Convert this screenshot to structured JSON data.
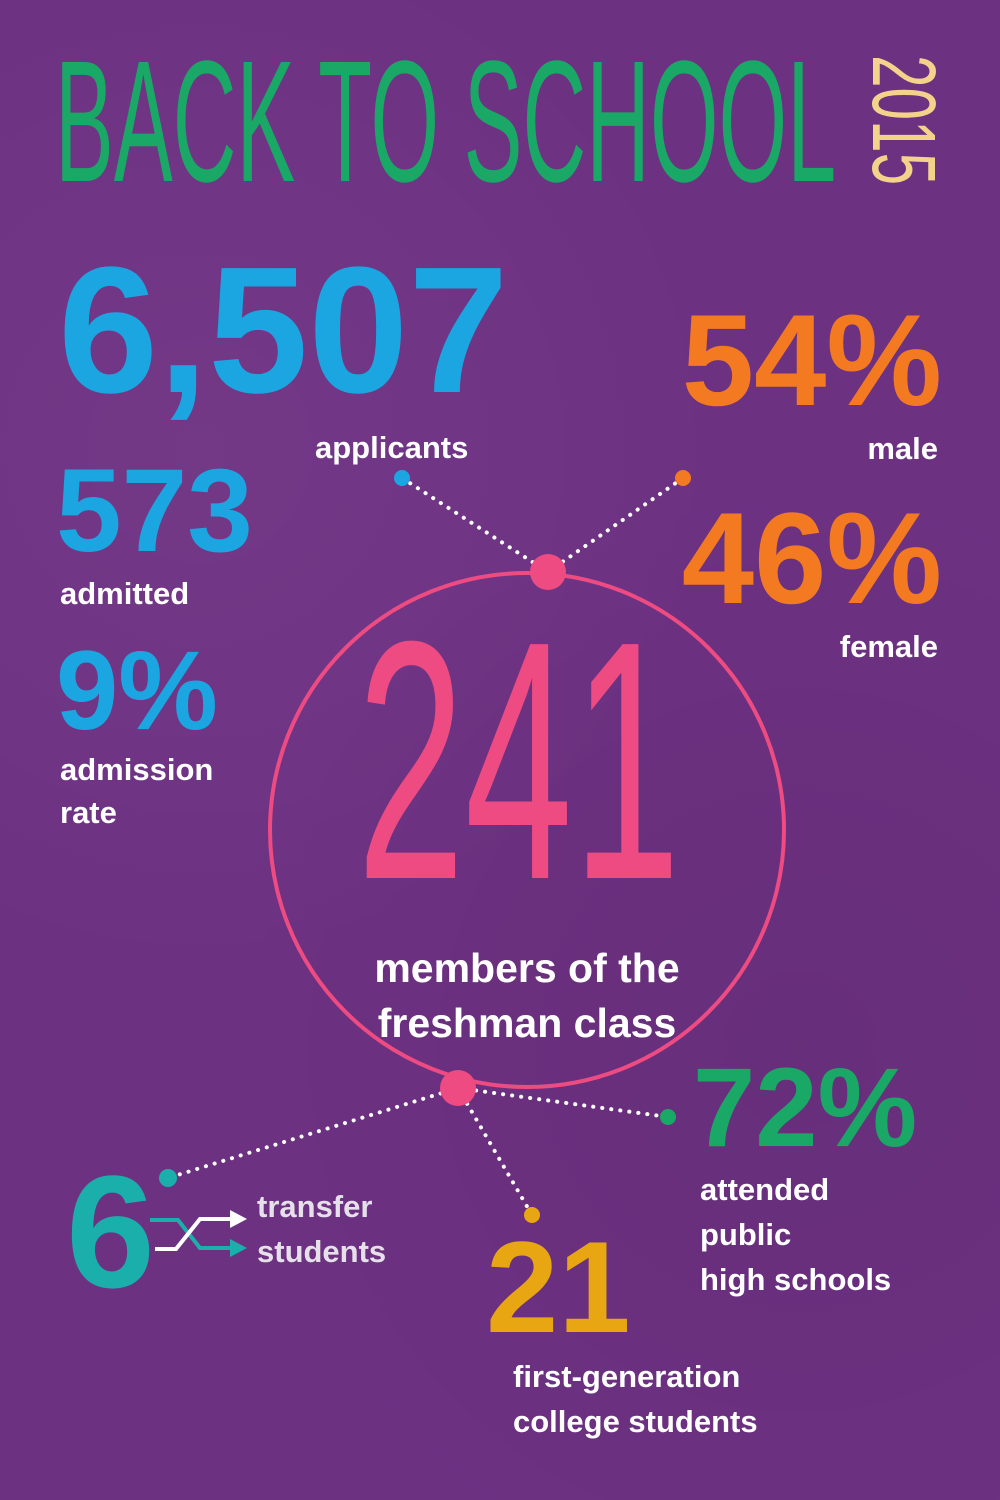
{
  "title": {
    "text": "BACK TO SCHOOL",
    "year": "2015"
  },
  "colors": {
    "background": "#6d3182",
    "title": "#1aa866",
    "year": "#f3d38a",
    "applicants": "#1ba6e2",
    "gender": "#f47a22",
    "freshman": "#ee4b82",
    "transfer": "#1aafaa",
    "first_gen": "#e8a612",
    "public": "#1aa866"
  },
  "stats": {
    "applicants": {
      "value": "6,507",
      "label": "applicants"
    },
    "admitted": {
      "value": "573",
      "label": "admitted"
    },
    "admission_rate": {
      "value": "9%",
      "label_line1": "admission",
      "label_line2": "rate"
    },
    "male": {
      "value": "54%",
      "label": "male"
    },
    "female": {
      "value": "46%",
      "label": "female"
    },
    "freshman": {
      "value": "241",
      "label_line1": "members of the",
      "label_line2": "freshman class"
    },
    "public_hs": {
      "value": "72%",
      "label_line1": "attended",
      "label_line2": "public",
      "label_line3": "high schools"
    },
    "first_gen": {
      "value": "21",
      "label_line1": "first-generation",
      "label_line2": "college students"
    },
    "transfer": {
      "value": "6",
      "label_line1": "transfer",
      "label_line2": "students",
      "icon": "crossing-arrows-icon"
    }
  }
}
